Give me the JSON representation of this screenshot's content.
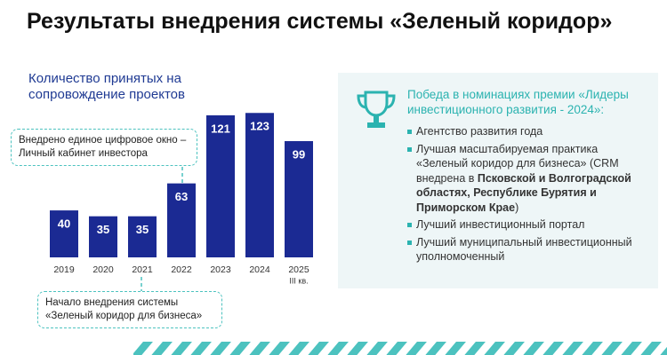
{
  "chart_data": {
    "type": "bar",
    "title": "Результаты внедрения системы «Зеленый коридор»",
    "subtitle": "Количество принятых на сопровождение проектов",
    "categories": [
      "2019",
      "2020",
      "2021",
      "2022",
      "2023",
      "2024",
      "2025"
    ],
    "category_note": "III кв.",
    "values": [
      40,
      35,
      35,
      63,
      121,
      123,
      99
    ],
    "color": "#1b2a93",
    "ylim": [
      0,
      130
    ],
    "annotations": [
      "Внедрено единое цифровое окно – Личный кабинет инвестора",
      "Начало внедрения системы «Зеленый коридор для бизнеса»"
    ]
  },
  "panel": {
    "heading": "Победа в номинациях премии «Лидеры инвестиционного развития - 2024»:",
    "items": [
      "Агентство развития года",
      {
        "text": "Лучшая масштабируемая практика «Зеленый коридор для бизнеса» (CRM внедрена в ",
        "bold": "Псковской и Волгоградской областях, Республике Бурятия и Приморском Крае",
        "end": ")"
      },
      "Лучший инвестиционный портал",
      "Лучший муниципальный инвестиционный уполномоченный"
    ]
  }
}
